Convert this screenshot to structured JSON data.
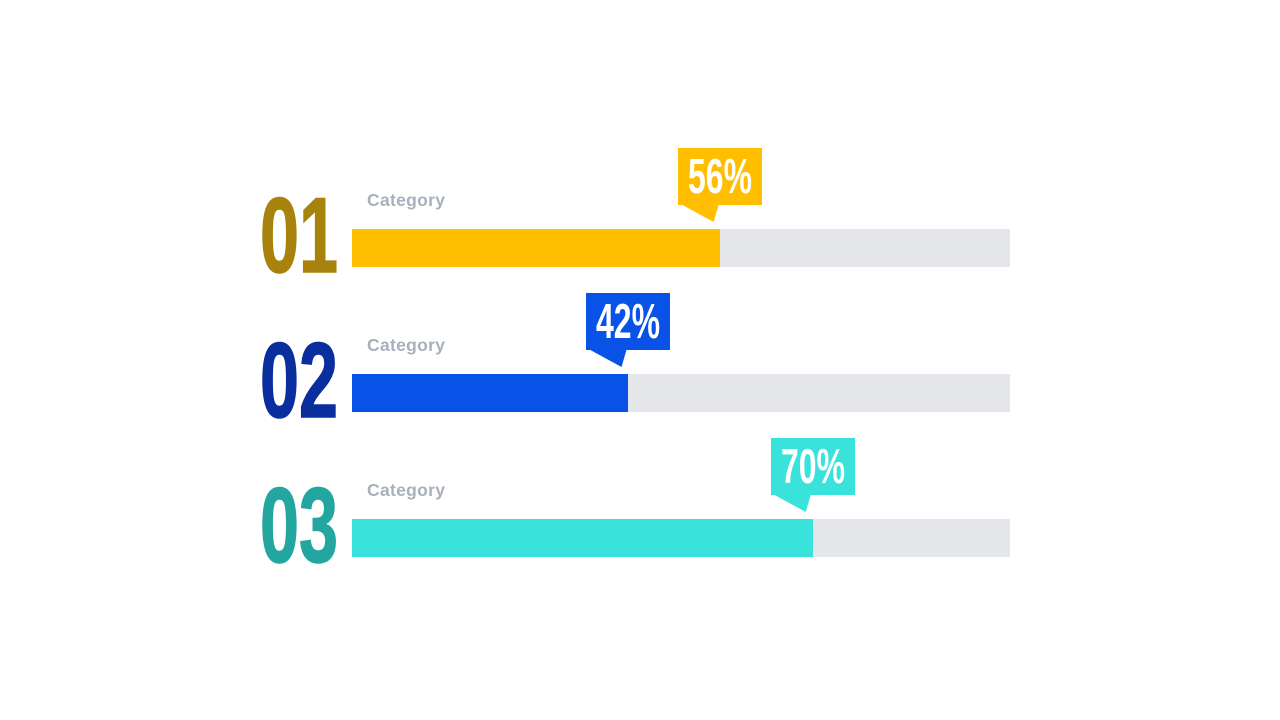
{
  "colors": {
    "background": "#FFFFFF",
    "track": "#E4E6E9",
    "label": "#A9B0BD",
    "value_text": "#FFFFFF"
  },
  "chart_data": {
    "type": "bar",
    "orientation": "horizontal",
    "title": "",
    "categories": [
      "Category",
      "Category",
      "Category"
    ],
    "series": [
      {
        "name": "percent",
        "values": [
          56,
          42,
          70
        ]
      }
    ],
    "xlim": [
      0,
      100
    ],
    "grid": false,
    "legend": false,
    "rows": [
      {
        "index": "01",
        "label": "Category",
        "value": 56,
        "value_label": "56%",
        "bar_color": "#FFBE00",
        "number_color": "#A7830D"
      },
      {
        "index": "02",
        "label": "Category",
        "value": 42,
        "value_label": "42%",
        "bar_color": "#0852E8",
        "number_color": "#0B2E9F"
      },
      {
        "index": "03",
        "label": "Category",
        "value": 70,
        "value_label": "70%",
        "bar_color": "#39E2DB",
        "number_color": "#23A69F"
      }
    ]
  }
}
